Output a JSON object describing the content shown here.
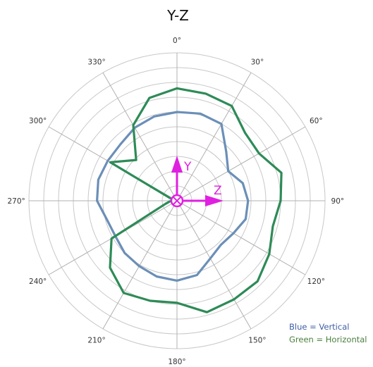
{
  "chart_data": {
    "type": "polar-line",
    "title": "Y-Z",
    "angle_ticks": [
      "0°",
      "30°",
      "60°",
      "90°",
      "120°",
      "150°",
      "180°",
      "210°",
      "240°",
      "270°",
      "300°",
      "330°"
    ],
    "angle_values": [
      0,
      30,
      60,
      90,
      120,
      150,
      180,
      210,
      240,
      270,
      300,
      330
    ],
    "rings": 10,
    "rlim": [
      0,
      10
    ],
    "grid": true,
    "series": [
      {
        "key": "vertical",
        "color": "#6b8fb8",
        "theta": [
          0,
          15,
          30,
          45,
          60,
          75,
          90,
          105,
          120,
          135,
          150,
          165,
          180,
          195,
          210,
          225,
          240,
          255,
          270,
          285,
          300,
          315,
          330,
          345,
          360
        ],
        "r": [
          6.0,
          6.1,
          6.0,
          4.7,
          4.0,
          4.6,
          4.8,
          4.8,
          4.4,
          4.2,
          4.5,
          5.2,
          5.4,
          5.3,
          5.1,
          5.0,
          4.8,
          4.9,
          5.4,
          5.5,
          5.4,
          5.4,
          5.7,
          5.9,
          6.0
        ]
      },
      {
        "key": "horizontal",
        "color": "#2e8b57",
        "theta": [
          0,
          15,
          30,
          45,
          60,
          75,
          90,
          105,
          120,
          135,
          150,
          165,
          180,
          195,
          210,
          225,
          240,
          255,
          270,
          285,
          300,
          315,
          330,
          345,
          360
        ],
        "r": [
          7.6,
          7.5,
          7.4,
          6.5,
          6.4,
          7.3,
          7.0,
          6.7,
          7.2,
          7.7,
          7.7,
          7.8,
          6.9,
          7.0,
          7.2,
          6.4,
          5.1,
          0.8,
          0.4,
          0.3,
          5.2,
          3.9,
          5.9,
          7.2,
          7.6
        ]
      }
    ],
    "axis_markers": {
      "y_label": "Y",
      "z_label": "Z",
      "color": "#e020e0"
    },
    "legend": {
      "position": "bottom-right",
      "entries": [
        {
          "text": "Blue = Vertical",
          "color": "#3f5fa5"
        },
        {
          "text": "Green = Horizontal",
          "color": "#4b7f3e"
        }
      ]
    }
  }
}
